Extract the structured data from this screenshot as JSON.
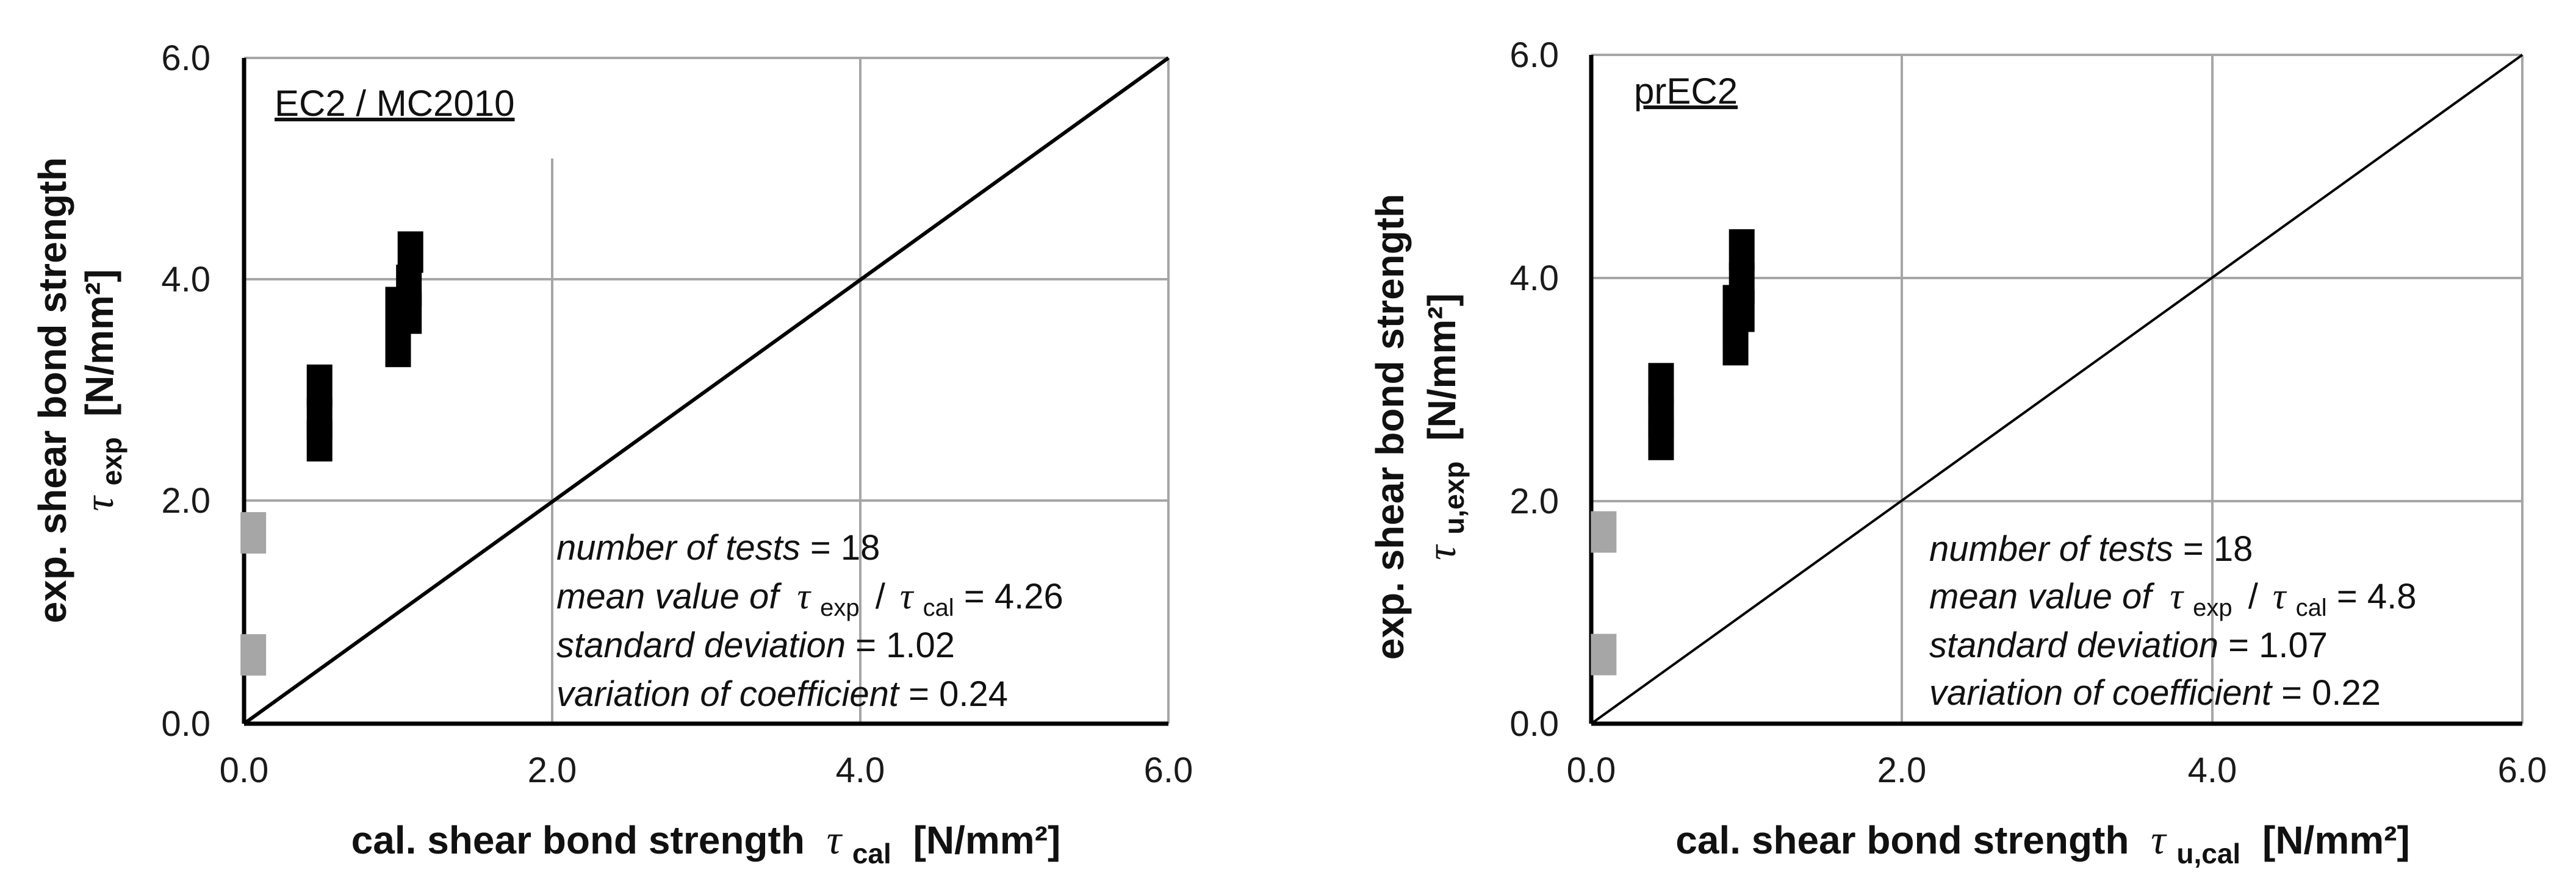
{
  "chart_data": [
    {
      "type": "scatter",
      "panel_label": "EC2 / MC2010",
      "xlim": [
        0,
        6
      ],
      "ylim": [
        0,
        6
      ],
      "x_ticks": [
        "0.0",
        "2.0",
        "4.0",
        "6.0"
      ],
      "y_ticks": [
        "0.0",
        "2.0",
        "4.0",
        "6.0"
      ],
      "xlabel": {
        "prefix": "cal. shear bond strength",
        "symbol": "τ",
        "subscript": "cal",
        "unit": "[N/mm²]"
      },
      "ylabel": {
        "line1": "exp. shear bond strength",
        "symbol": "τ",
        "subscript": "exp",
        "unit": "[N/mm²]"
      },
      "diagonal": {
        "from": [
          0,
          0
        ],
        "to": [
          6,
          6
        ],
        "label": "1:1 line"
      },
      "series": [
        {
          "name": "black markers",
          "color": "#000000",
          "points": [
            [
              0.49,
              2.55
            ],
            [
              0.49,
              2.75
            ],
            [
              0.49,
              3.05
            ],
            [
              1.0,
              3.4
            ],
            [
              1.0,
              3.55
            ],
            [
              1.0,
              3.75
            ],
            [
              1.07,
              3.7
            ],
            [
              1.07,
              3.95
            ],
            [
              1.08,
              4.25
            ]
          ]
        },
        {
          "name": "grey markers",
          "color": "#a6a6a6",
          "points": [
            [
              0.06,
              1.72
            ],
            [
              0.06,
              0.62
            ]
          ]
        }
      ],
      "stats": {
        "n_label": "number of tests",
        "n_value": "18",
        "mean_label": "mean value of",
        "mean_sym": "τ",
        "mean_num_sub": "exp",
        "mean_sep": "/",
        "mean_den_sub": "cal",
        "mean_value": "4.26",
        "sd_label": "standard deviation",
        "sd_value": "1.02",
        "cv_label": "variation of coefficient",
        "cv_value": "0.24"
      }
    },
    {
      "type": "scatter",
      "panel_label": "prEC2",
      "xlim": [
        0,
        6
      ],
      "ylim": [
        0,
        6
      ],
      "x_ticks": [
        "0.0",
        "2.0",
        "4.0",
        "6.0"
      ],
      "y_ticks": [
        "0.0",
        "2.0",
        "4.0",
        "6.0"
      ],
      "xlabel": {
        "prefix": "cal. shear bond strength",
        "symbol": "τ",
        "subscript": "u,cal",
        "unit": "[N/mm²]"
      },
      "ylabel": {
        "line1": "exp. shear bond strength",
        "symbol": "τ",
        "subscript": "u,exp",
        "unit": "[N/mm²]"
      },
      "diagonal": {
        "from": [
          0,
          0
        ],
        "to": [
          6,
          6
        ],
        "label": "1:1 line"
      },
      "series": [
        {
          "name": "black markers",
          "color": "#000000",
          "points": [
            [
              0.45,
              2.55
            ],
            [
              0.45,
              2.75
            ],
            [
              0.45,
              3.05
            ],
            [
              0.93,
              3.4
            ],
            [
              0.93,
              3.55
            ],
            [
              0.93,
              3.75
            ],
            [
              0.97,
              3.7
            ],
            [
              0.97,
              3.95
            ],
            [
              0.97,
              4.25
            ]
          ]
        },
        {
          "name": "grey markers",
          "color": "#a6a6a6",
          "points": [
            [
              0.08,
              1.72
            ],
            [
              0.08,
              0.62
            ]
          ]
        }
      ],
      "stats": {
        "n_label": "number of tests",
        "n_value": "18",
        "mean_label": "mean value of",
        "mean_sym": "τ",
        "mean_num_sub": "exp",
        "mean_sep": "/",
        "mean_den_sub": "cal",
        "mean_value": "4.8",
        "sd_label": "standard deviation",
        "sd_value": "1.07",
        "cv_label": "variation of coefficient",
        "cv_value": "0.22"
      }
    }
  ]
}
